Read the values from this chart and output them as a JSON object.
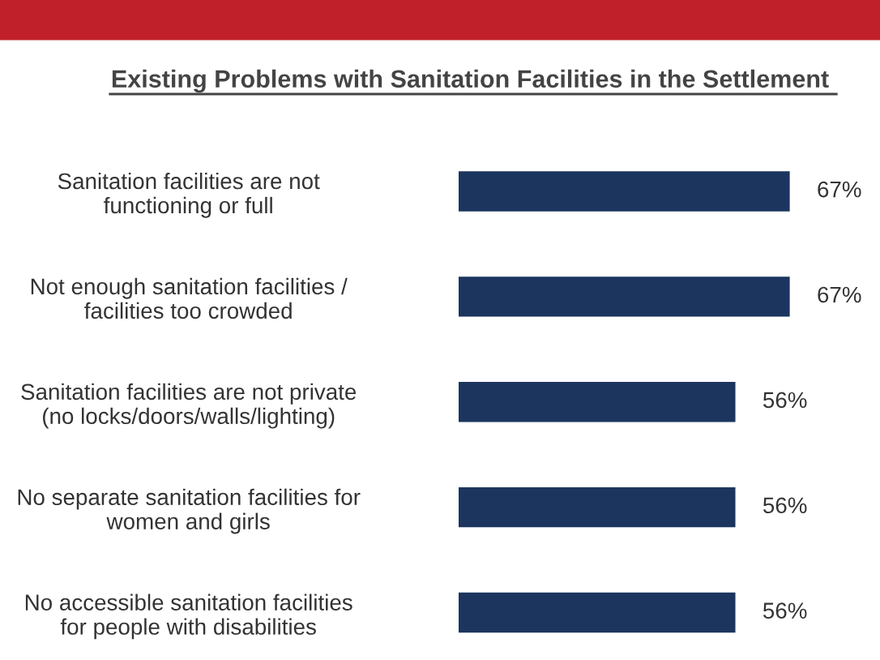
{
  "chart_data": {
    "type": "bar",
    "orientation": "horizontal",
    "title": "Existing Problems with Sanitation Facilities in the Settlement",
    "categories": [
      "Sanitation facilities are not\nfunctioning or full",
      "Not enough sanitation facilities /\nfacilities too crowded",
      "Sanitation facilities are not private\n(no locks/doors/walls/lighting)",
      "No separate sanitation facilities for\nwomen and girls",
      "No accessible sanitation facilities\nfor people with disabilities"
    ],
    "values": [
      67,
      67,
      56,
      56,
      56
    ],
    "value_labels": [
      "67%",
      "67%",
      "56%",
      "56%",
      "56%"
    ],
    "color": "#1b355e",
    "grid": false,
    "legend": false
  }
}
